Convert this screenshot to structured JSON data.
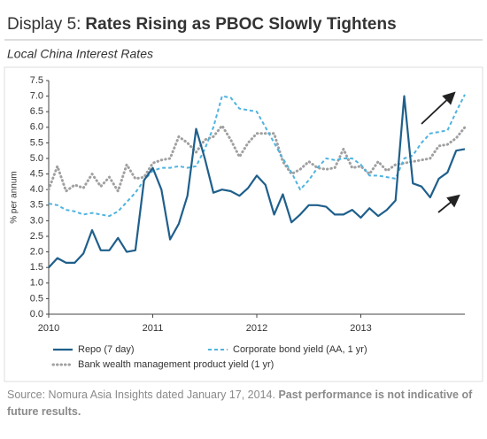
{
  "chart_data": {
    "type": "line",
    "title_prefix": "Display 5:",
    "title": "Rates Rising as PBOC Slowly Tightens",
    "subtitle": "Local China Interest Rates",
    "ylabel": "% per annum",
    "categories": [
      "2010",
      null,
      null,
      null,
      null,
      null,
      null,
      null,
      null,
      null,
      null,
      null,
      "2011",
      null,
      null,
      null,
      null,
      null,
      null,
      null,
      null,
      null,
      null,
      null,
      "2012",
      null,
      null,
      null,
      null,
      null,
      null,
      null,
      null,
      null,
      null,
      null,
      "2013",
      null,
      null,
      null,
      null,
      null,
      null,
      null,
      null,
      null,
      null,
      null,
      null
    ],
    "series": [
      {
        "name": "Repo (7 day)",
        "color": "#1f5f8b",
        "style": "solid",
        "values": [
          1.5,
          1.8,
          1.65,
          1.65,
          1.95,
          2.7,
          2.05,
          2.05,
          2.45,
          2.0,
          2.05,
          4.3,
          4.7,
          4.0,
          2.4,
          2.9,
          3.8,
          5.95,
          5.0,
          3.9,
          4.0,
          3.95,
          3.8,
          4.05,
          4.45,
          4.15,
          3.2,
          3.85,
          2.95,
          3.2,
          3.5,
          3.5,
          3.45,
          3.2,
          3.2,
          3.35,
          3.1,
          3.4,
          3.15,
          3.35,
          3.65,
          7.0,
          4.2,
          4.1,
          3.75,
          4.35,
          4.55,
          5.25,
          5.3
        ]
      },
      {
        "name": "Corporate bond yield (AA, 1 yr)",
        "color": "#4fb3e0",
        "style": "dashed",
        "values": [
          3.55,
          3.5,
          3.35,
          3.3,
          3.2,
          3.25,
          3.2,
          3.15,
          3.3,
          3.6,
          3.9,
          4.3,
          4.6,
          4.7,
          4.7,
          4.75,
          4.7,
          4.75,
          5.3,
          6.0,
          7.0,
          6.95,
          6.6,
          6.55,
          6.5,
          6.0,
          5.5,
          5.0,
          4.55,
          4.0,
          4.3,
          4.7,
          5.0,
          4.95,
          5.0,
          5.0,
          4.8,
          4.45,
          4.45,
          4.4,
          4.35,
          5.0,
          5.1,
          5.5,
          5.8,
          5.85,
          5.9,
          6.5,
          7.05
        ]
      },
      {
        "name": "Bank wealth management product yield (1 yr)",
        "color": "#a0a0a0",
        "style": "dotted",
        "values": [
          4.0,
          4.75,
          3.95,
          4.15,
          4.05,
          4.5,
          4.1,
          4.4,
          3.95,
          4.8,
          4.35,
          4.4,
          4.85,
          4.95,
          5.0,
          5.7,
          5.5,
          5.2,
          5.6,
          5.7,
          6.05,
          5.6,
          5.05,
          5.5,
          5.8,
          5.8,
          5.8,
          4.9,
          4.5,
          4.65,
          4.9,
          4.7,
          4.65,
          4.7,
          5.3,
          4.7,
          4.75,
          4.5,
          4.9,
          4.6,
          4.8,
          4.85,
          4.9,
          4.95,
          5.0,
          5.4,
          5.45,
          5.65,
          6.0
        ]
      }
    ],
    "ylim": [
      0,
      7.5
    ],
    "yticks": [
      {
        "value": 0,
        "label": "0.0"
      },
      0.5,
      {
        "value": 1,
        "label": "1.0"
      },
      1.5,
      {
        "value": 2,
        "label": "2.0"
      },
      2.5,
      {
        "value": 3,
        "label": "3.0"
      },
      3.5,
      {
        "value": 4,
        "label": "4.0"
      },
      4.5,
      {
        "value": 5,
        "label": "5.0"
      },
      5.5,
      {
        "value": 6,
        "label": "6.0"
      },
      6.5,
      {
        "value": 7,
        "label": "7.0"
      },
      7.5
    ],
    "grid": false,
    "legend": "bottom",
    "source": "Source: Nomura Asia Insights dated January 17, 2014.",
    "disclaimer": "Past performance is not indicative of future results."
  }
}
